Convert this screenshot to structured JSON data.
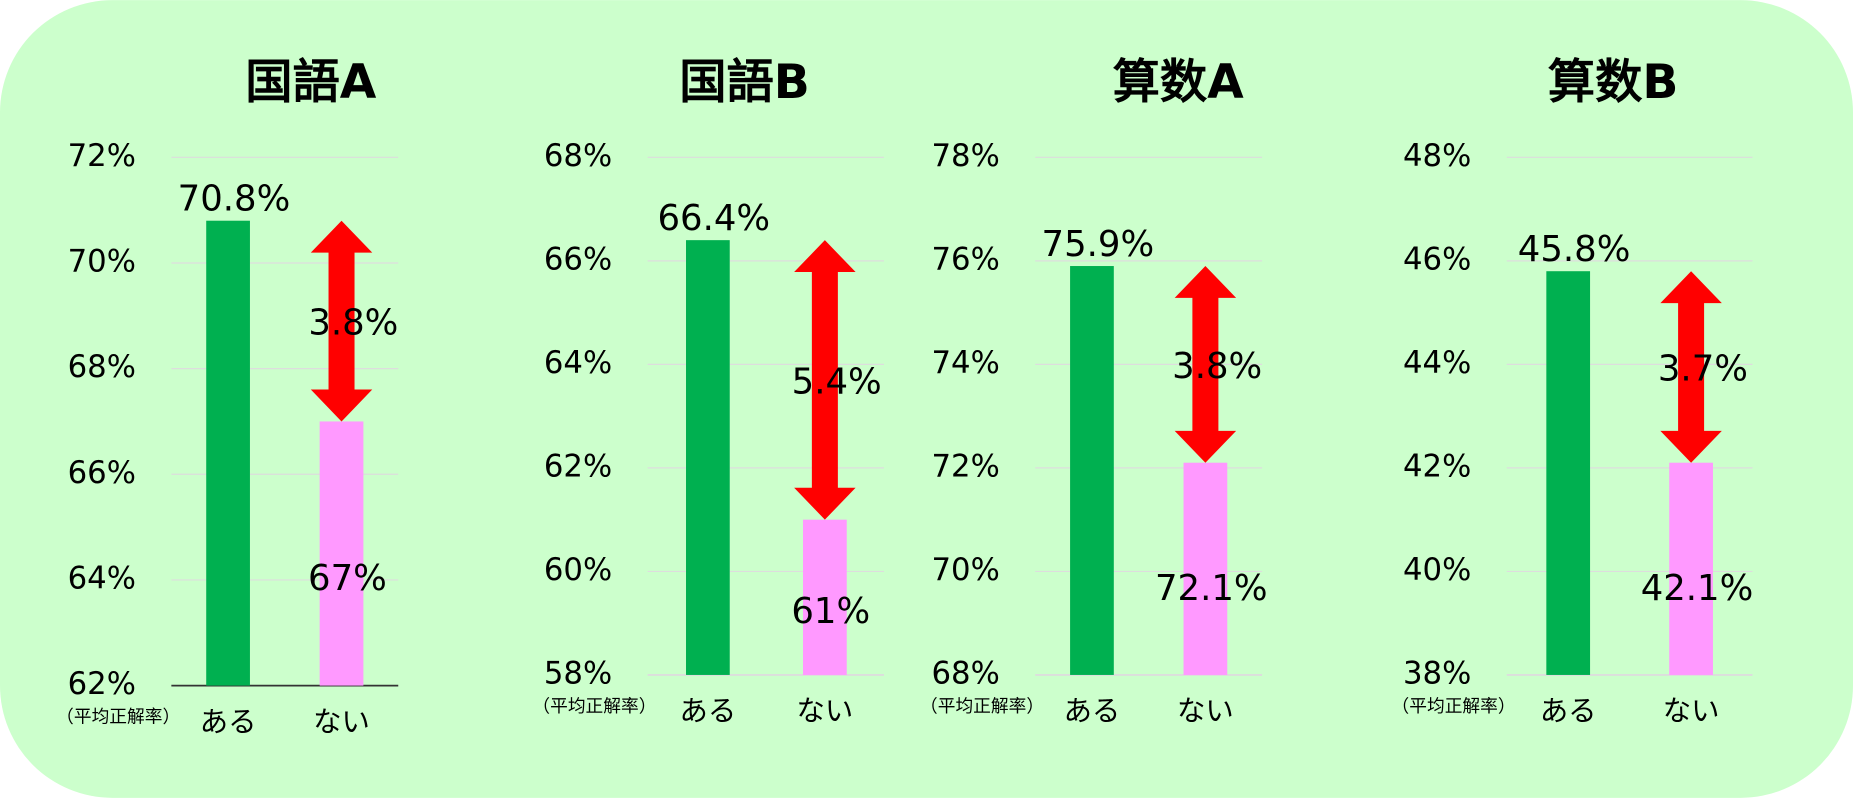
{
  "chart_data": [
    {
      "type": "bar",
      "title": "国語A",
      "y_axis_label": "（平均正解率）",
      "categories": [
        "ある",
        "ない"
      ],
      "values": [
        70.8,
        67
      ],
      "value_labels": [
        "70.8%",
        "67%"
      ],
      "colors": [
        "#00b050",
        "#ff99ff"
      ],
      "annotation": "3.8%",
      "arrow_color": "#ff0000",
      "ylim": [
        62,
        72
      ],
      "yticks": [
        {
          "value": 62,
          "label": "62%"
        },
        {
          "value": 64,
          "label": "64%"
        },
        {
          "value": 66,
          "label": "66%"
        },
        {
          "value": 68,
          "label": "68%"
        },
        {
          "value": 70,
          "label": "70%"
        },
        {
          "value": 72,
          "label": "72%"
        }
      ],
      "grid": true
    },
    {
      "type": "bar",
      "title": "国語B",
      "y_axis_label": "（平均正解率）",
      "categories": [
        "ある",
        "ない"
      ],
      "values": [
        66.4,
        61
      ],
      "value_labels": [
        "66.4%",
        "61%"
      ],
      "colors": [
        "#00b050",
        "#ff99ff"
      ],
      "annotation": "5.4%",
      "arrow_color": "#ff0000",
      "ylim": [
        58,
        68
      ],
      "yticks": [
        {
          "value": 58,
          "label": "58%"
        },
        {
          "value": 60,
          "label": "60%"
        },
        {
          "value": 62,
          "label": "62%"
        },
        {
          "value": 64,
          "label": "64%"
        },
        {
          "value": 66,
          "label": "66%"
        },
        {
          "value": 68,
          "label": "68%"
        }
      ],
      "grid": true
    },
    {
      "type": "bar",
      "title": "算数A",
      "y_axis_label": "（平均正解率）",
      "categories": [
        "ある",
        "ない"
      ],
      "values": [
        75.9,
        72.1
      ],
      "value_labels": [
        "75.9%",
        "72.1%"
      ],
      "colors": [
        "#00b050",
        "#ff99ff"
      ],
      "annotation": "3.8%",
      "arrow_color": "#ff0000",
      "ylim": [
        68,
        78
      ],
      "yticks": [
        {
          "value": 68,
          "label": "68%"
        },
        {
          "value": 70,
          "label": "70%"
        },
        {
          "value": 72,
          "label": "72%"
        },
        {
          "value": 74,
          "label": "74%"
        },
        {
          "value": 76,
          "label": "76%"
        },
        {
          "value": 78,
          "label": "78%"
        }
      ],
      "grid": true
    },
    {
      "type": "bar",
      "title": "算数B",
      "y_axis_label": "（平均正解率）",
      "categories": [
        "ある",
        "ない"
      ],
      "values": [
        45.8,
        42.1
      ],
      "value_labels": [
        "45.8%",
        "42.1%"
      ],
      "colors": [
        "#00b050",
        "#ff99ff"
      ],
      "annotation": "3.7%",
      "arrow_color": "#ff0000",
      "ylim": [
        38,
        48
      ],
      "yticks": [
        {
          "value": 38,
          "label": "38%"
        },
        {
          "value": 40,
          "label": "40%"
        },
        {
          "value": 42,
          "label": "42%"
        },
        {
          "value": 44,
          "label": "44%"
        },
        {
          "value": 46,
          "label": "46%"
        },
        {
          "value": 48,
          "label": "48%"
        }
      ],
      "grid": true
    }
  ]
}
